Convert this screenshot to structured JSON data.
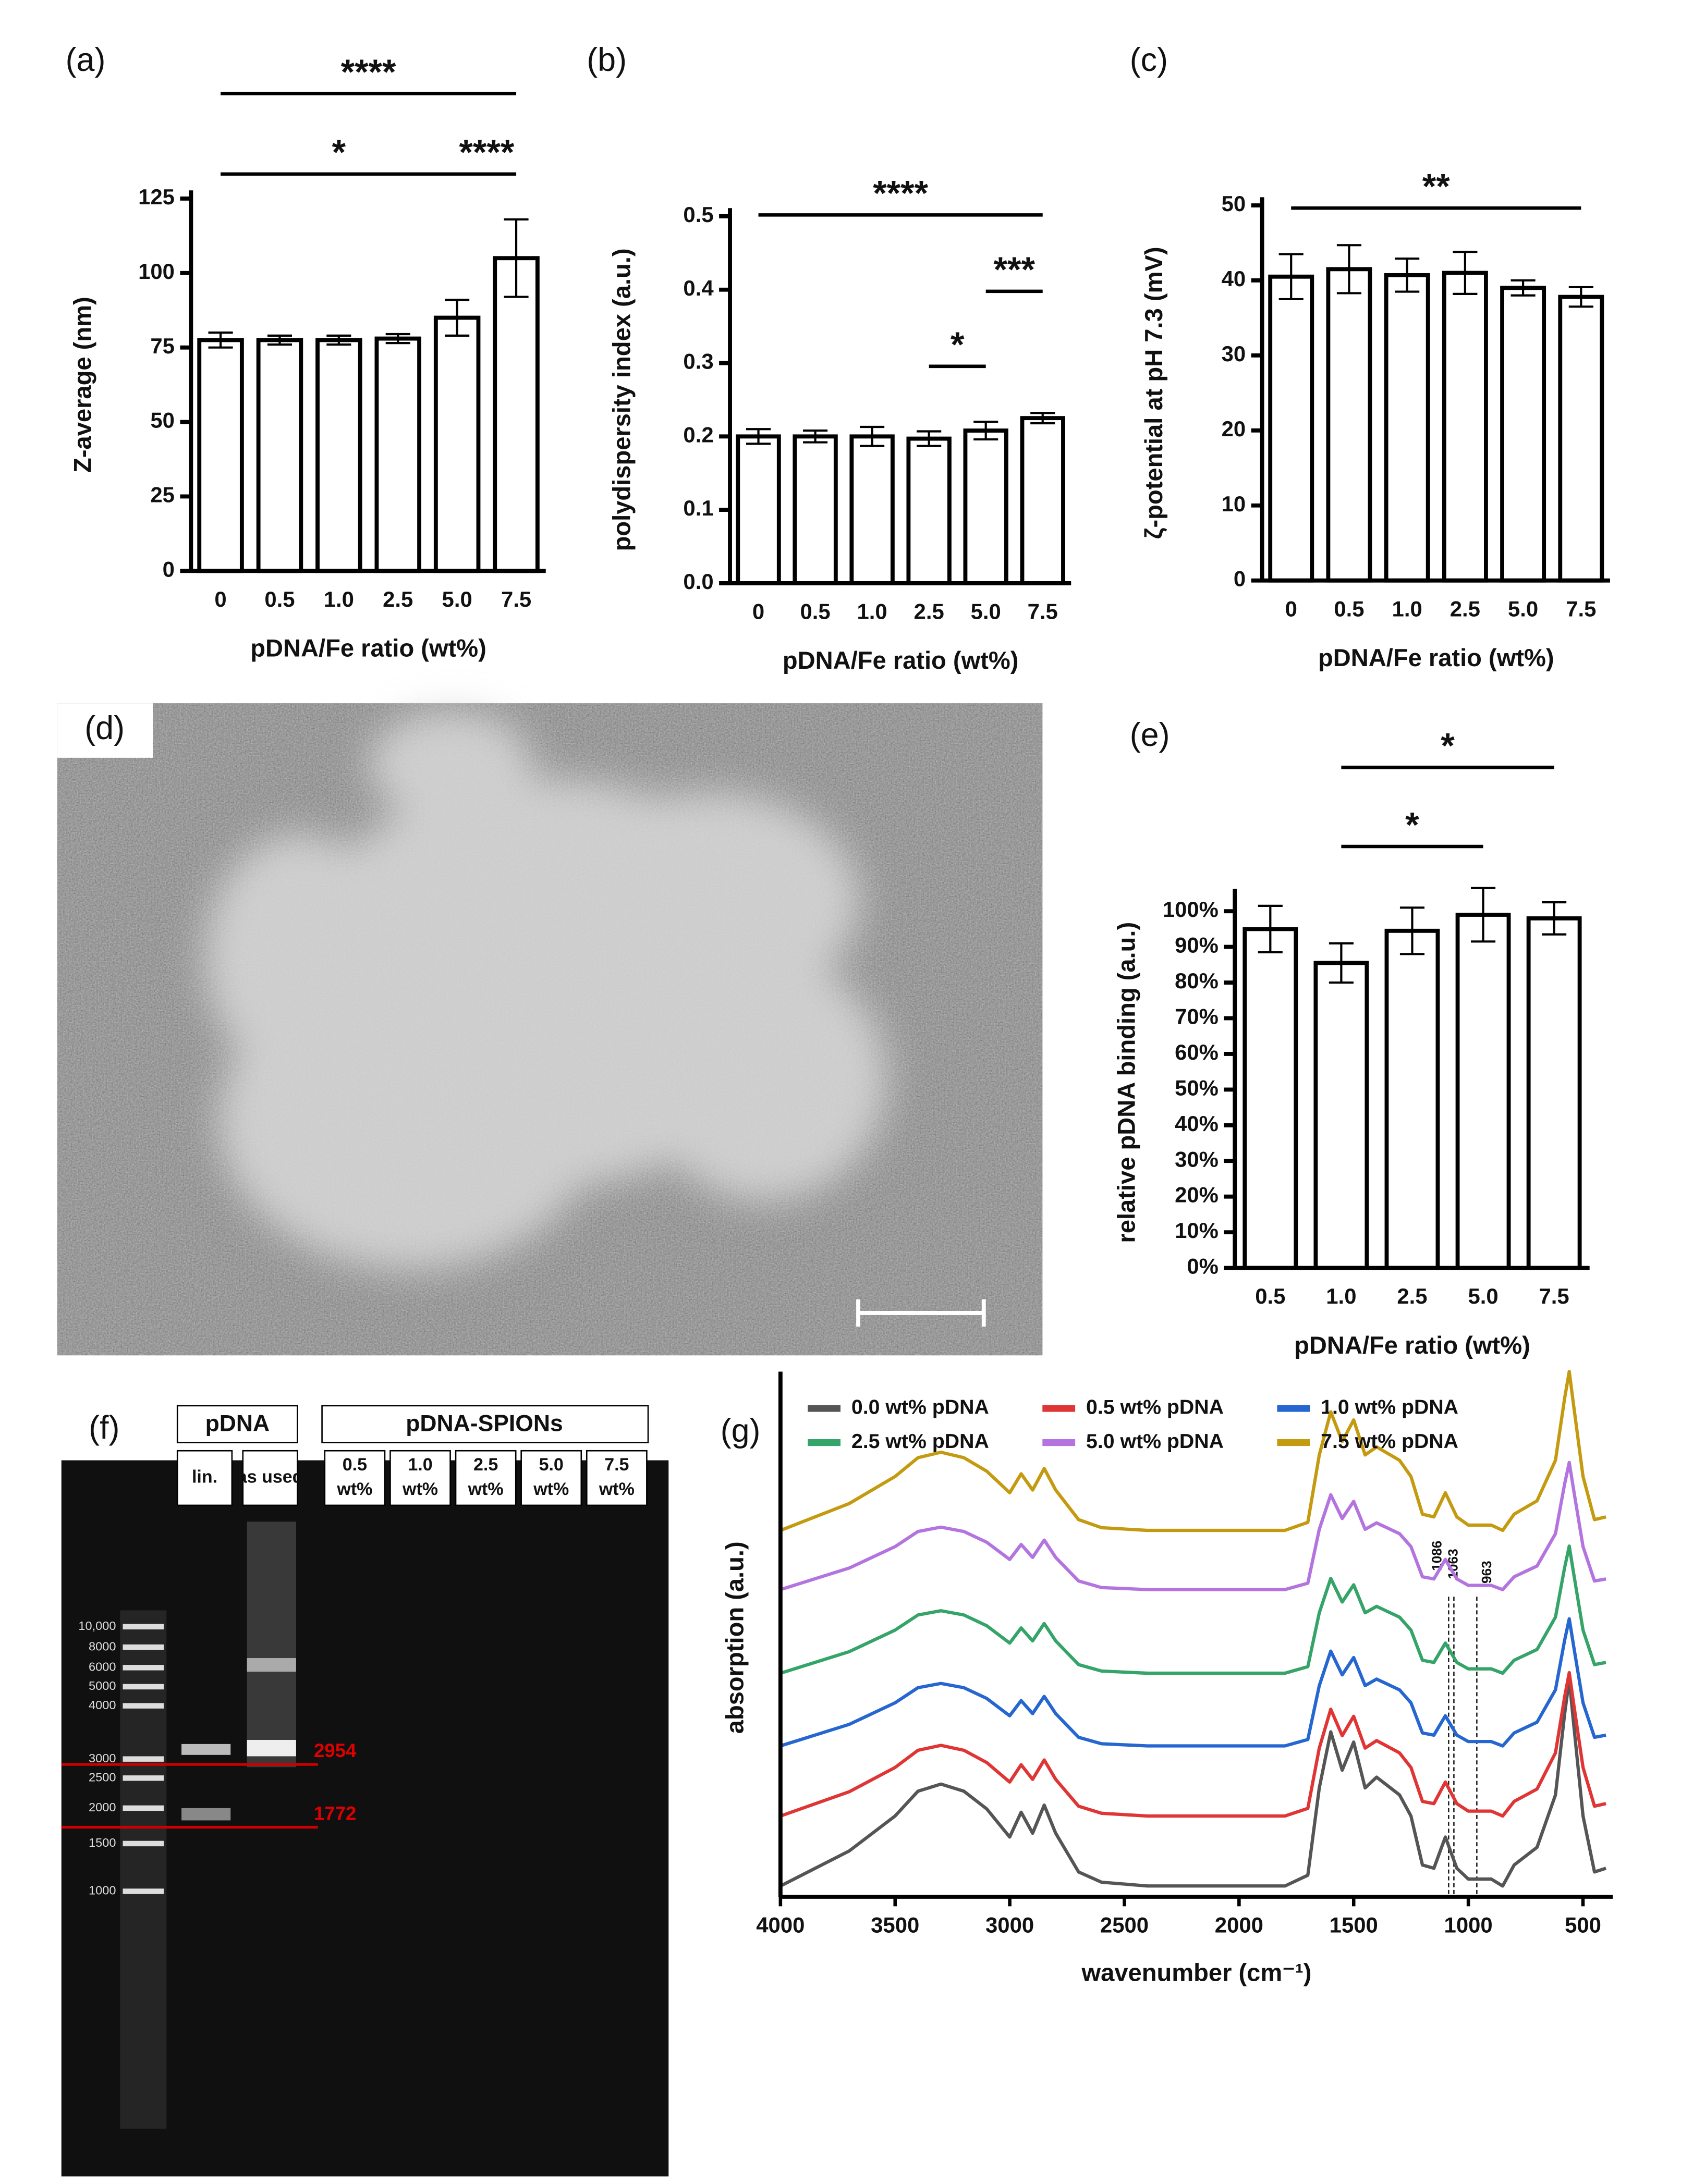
{
  "chart_data": [
    {
      "type": "bar",
      "panel_label": "(a)",
      "x_label": "pDNA/Fe ratio  (wt%)",
      "y_label": "Z-average (nm)",
      "categories": [
        "0",
        "0.5",
        "1.0",
        "2.5",
        "5.0",
        "7.5"
      ],
      "values": [
        77.5,
        77.5,
        77.5,
        78,
        85,
        105
      ],
      "errors": [
        2.5,
        1.5,
        1.5,
        1.5,
        6,
        13
      ],
      "ylim": [
        0,
        125
      ],
      "yticks": [
        0,
        25,
        50,
        75,
        100,
        125
      ],
      "significance": [
        {
          "label": "****",
          "from": "0",
          "to": "7.5"
        },
        {
          "label": "*",
          "from": "0",
          "to": "5.0"
        },
        {
          "label": "****",
          "from": "5.0",
          "to": "7.5"
        }
      ]
    },
    {
      "type": "bar",
      "panel_label": "(b)",
      "x_label": "pDNA/Fe ratio  (wt%)",
      "y_label": "polydispersity index (a.u.)",
      "categories": [
        "0",
        "0.5",
        "1.0",
        "2.5",
        "5.0",
        "7.5"
      ],
      "values": [
        0.2,
        0.2,
        0.2,
        0.197,
        0.208,
        0.225
      ],
      "errors": [
        0.01,
        0.008,
        0.013,
        0.01,
        0.012,
        0.007
      ],
      "ylim": [
        0,
        0.5
      ],
      "yticks": [
        {
          "value": 0,
          "label": "0.0"
        },
        0.1,
        0.2,
        0.3,
        0.4,
        0.5
      ],
      "significance": [
        {
          "label": "****",
          "from": "0",
          "to": "7.5"
        },
        {
          "label": "***",
          "from": "5.0",
          "to": "7.5"
        },
        {
          "label": "*",
          "from": "2.5",
          "to": "5.0"
        }
      ]
    },
    {
      "type": "bar",
      "panel_label": "(c)",
      "x_label": "pDNA/Fe ratio  (wt%)",
      "y_label": "ζ-potential at pH 7.3 (mV)",
      "categories": [
        "0",
        "0.5",
        "1.0",
        "2.5",
        "5.0",
        "7.5"
      ],
      "values": [
        40.5,
        41.5,
        40.7,
        41,
        39,
        37.8
      ],
      "errors": [
        3,
        3.2,
        2.2,
        2.8,
        1,
        1.3
      ],
      "ylim": [
        0,
        50
      ],
      "yticks": [
        0,
        10,
        20,
        30,
        40,
        50
      ],
      "significance": [
        {
          "label": "**",
          "from": "0",
          "to": "7.5"
        }
      ]
    },
    {
      "type": "bar",
      "panel_label": "(e)",
      "x_label": "pDNA/Fe ratio  (wt%)",
      "y_label": "relative pDNA binding (a.u.)",
      "categories": [
        "0.5",
        "1.0",
        "2.5",
        "5.0",
        "7.5"
      ],
      "values": [
        95,
        85.5,
        94.5,
        99,
        98
      ],
      "errors": [
        6.5,
        5.5,
        6.5,
        7.5,
        4.5
      ],
      "ylim": [
        0,
        104
      ],
      "yticks": [
        {
          "value": 0,
          "label": "0%"
        },
        {
          "value": 10,
          "label": "10%"
        },
        {
          "value": 20,
          "label": "20%"
        },
        {
          "value": 30,
          "label": "30%"
        },
        {
          "value": 40,
          "label": "40%"
        },
        {
          "value": 50,
          "label": "50%"
        },
        {
          "value": 60,
          "label": "60%"
        },
        {
          "value": 70,
          "label": "70%"
        },
        {
          "value": 80,
          "label": "80%"
        },
        {
          "value": 90,
          "label": "90%"
        },
        {
          "value": 100,
          "label": "100%"
        }
      ],
      "significance": [
        {
          "label": "*",
          "from": "1.0",
          "to": "7.5"
        },
        {
          "label": "*",
          "from": "1.0",
          "to": "5.0"
        }
      ]
    },
    {
      "type": "line",
      "panel_label": "(g)",
      "x_label": "wavenumber (cm⁻¹)",
      "y_label": "absorption (a.u.)",
      "x": [
        4000,
        3700,
        3500,
        3400,
        3300,
        3200,
        3100,
        3000,
        2950,
        2900,
        2850,
        2800,
        2700,
        2600,
        2400,
        2000,
        1800,
        1700,
        1650,
        1600,
        1550,
        1500,
        1450,
        1400,
        1300,
        1250,
        1200,
        1150,
        1100,
        1050,
        1000,
        900,
        850,
        800,
        700,
        620,
        580,
        560,
        540,
        500,
        450,
        400
      ],
      "xlim": [
        4000,
        370
      ],
      "xticks": [
        4000,
        3500,
        3000,
        2500,
        2000,
        1500,
        1000,
        500
      ],
      "ylim": [
        0,
        10
      ],
      "vlines": [
        1086,
        1063,
        963
      ],
      "series": [
        {
          "name": "0.0 wt% pDNA",
          "color": "#555555",
          "values": [
            0.2,
            0.85,
            1.5,
            1.96,
            2.09,
            1.96,
            1.63,
            1.11,
            1.57,
            1.18,
            1.7,
            1.18,
            0.46,
            0.27,
            0.2,
            0.2,
            0.2,
            0.4,
            2.02,
            3.06,
            2.35,
            2.87,
            2.02,
            2.22,
            1.89,
            1.5,
            0.59,
            0.53,
            1.11,
            0.53,
            0.33,
            0.33,
            0.2,
            0.59,
            0.92,
            1.89,
            3.39,
            4.04,
            3.19,
            1.5,
            0.46,
            0.53
          ]
        },
        {
          "name": "0.5 wt% pDNA",
          "color": "#e03535",
          "values": [
            1.5,
            1.95,
            2.4,
            2.72,
            2.81,
            2.72,
            2.49,
            2.13,
            2.45,
            2.18,
            2.54,
            2.18,
            1.68,
            1.55,
            1.5,
            1.5,
            1.5,
            1.64,
            2.76,
            3.48,
            2.99,
            3.35,
            2.76,
            2.9,
            2.67,
            2.4,
            1.77,
            1.73,
            2.13,
            1.73,
            1.59,
            1.59,
            1.5,
            1.77,
            2.0,
            2.67,
            3.71,
            4.16,
            3.57,
            2.4,
            1.68,
            1.73
          ]
        },
        {
          "name": "1.0 wt% pDNA",
          "color": "#2566d0",
          "values": [
            2.8,
            3.2,
            3.6,
            3.88,
            3.96,
            3.88,
            3.68,
            3.36,
            3.64,
            3.4,
            3.72,
            3.4,
            2.96,
            2.84,
            2.8,
            2.8,
            2.8,
            2.92,
            3.92,
            4.56,
            4.12,
            4.44,
            3.92,
            4.04,
            3.84,
            3.6,
            3.04,
            3.0,
            3.36,
            3.0,
            2.88,
            2.88,
            2.8,
            3.04,
            3.24,
            3.84,
            4.76,
            5.16,
            4.64,
            3.6,
            2.96,
            3.0
          ]
        },
        {
          "name": "2.5 wt% pDNA",
          "color": "#35a468",
          "values": [
            4.15,
            4.55,
            4.95,
            5.23,
            5.31,
            5.23,
            5.03,
            4.71,
            4.99,
            4.75,
            5.07,
            4.75,
            4.31,
            4.19,
            4.15,
            4.15,
            4.15,
            4.27,
            5.27,
            5.91,
            5.47,
            5.79,
            5.27,
            5.39,
            5.19,
            4.95,
            4.39,
            4.35,
            4.71,
            4.35,
            4.23,
            4.23,
            4.15,
            4.39,
            4.59,
            5.19,
            6.11,
            6.51,
            5.99,
            4.95,
            4.31,
            4.35
          ]
        },
        {
          "name": "5.0 wt% pDNA",
          "color": "#b374e0",
          "values": [
            5.7,
            6.1,
            6.5,
            6.78,
            6.86,
            6.78,
            6.58,
            6.26,
            6.54,
            6.3,
            6.62,
            6.3,
            5.86,
            5.74,
            5.7,
            5.7,
            5.7,
            5.82,
            6.82,
            7.46,
            7.02,
            7.34,
            6.82,
            6.94,
            6.74,
            6.5,
            5.94,
            5.9,
            6.26,
            5.9,
            5.78,
            5.78,
            5.7,
            5.94,
            6.14,
            6.74,
            7.66,
            8.06,
            7.54,
            6.5,
            5.86,
            5.9
          ]
        },
        {
          "name": "7.5 wt% pDNA",
          "color": "#c49a10",
          "values": [
            6.8,
            7.3,
            7.8,
            8.15,
            8.25,
            8.15,
            7.9,
            7.5,
            7.85,
            7.55,
            7.95,
            7.55,
            7.0,
            6.85,
            6.8,
            6.8,
            6.8,
            6.95,
            8.2,
            9.0,
            8.45,
            8.85,
            8.2,
            8.35,
            8.1,
            7.8,
            7.1,
            7.05,
            7.5,
            7.05,
            6.9,
            6.9,
            6.8,
            7.1,
            7.35,
            8.1,
            9.25,
            9.75,
            9.1,
            7.8,
            7.0,
            7.05
          ]
        }
      ]
    }
  ],
  "image_d": {
    "panel_label": "(d)"
  },
  "gel_f": {
    "panel_label": "(f)",
    "group_1": "pDNA",
    "group_2": "pDNA-SPIONs",
    "lanes_1": [
      "lin.",
      "as used"
    ],
    "lanes_2": [
      [
        "0.5",
        "wt%"
      ],
      [
        "1.0",
        "wt%"
      ],
      [
        "2.5",
        "wt%"
      ],
      [
        "5.0",
        "wt%"
      ],
      [
        "7.5",
        "wt%"
      ]
    ],
    "ladder": [
      "10,000",
      "8000",
      "6000",
      "5000",
      "4000",
      "3000",
      "2500",
      "2000",
      "1500",
      "1000"
    ],
    "markers": [
      2954,
      1772
    ]
  }
}
